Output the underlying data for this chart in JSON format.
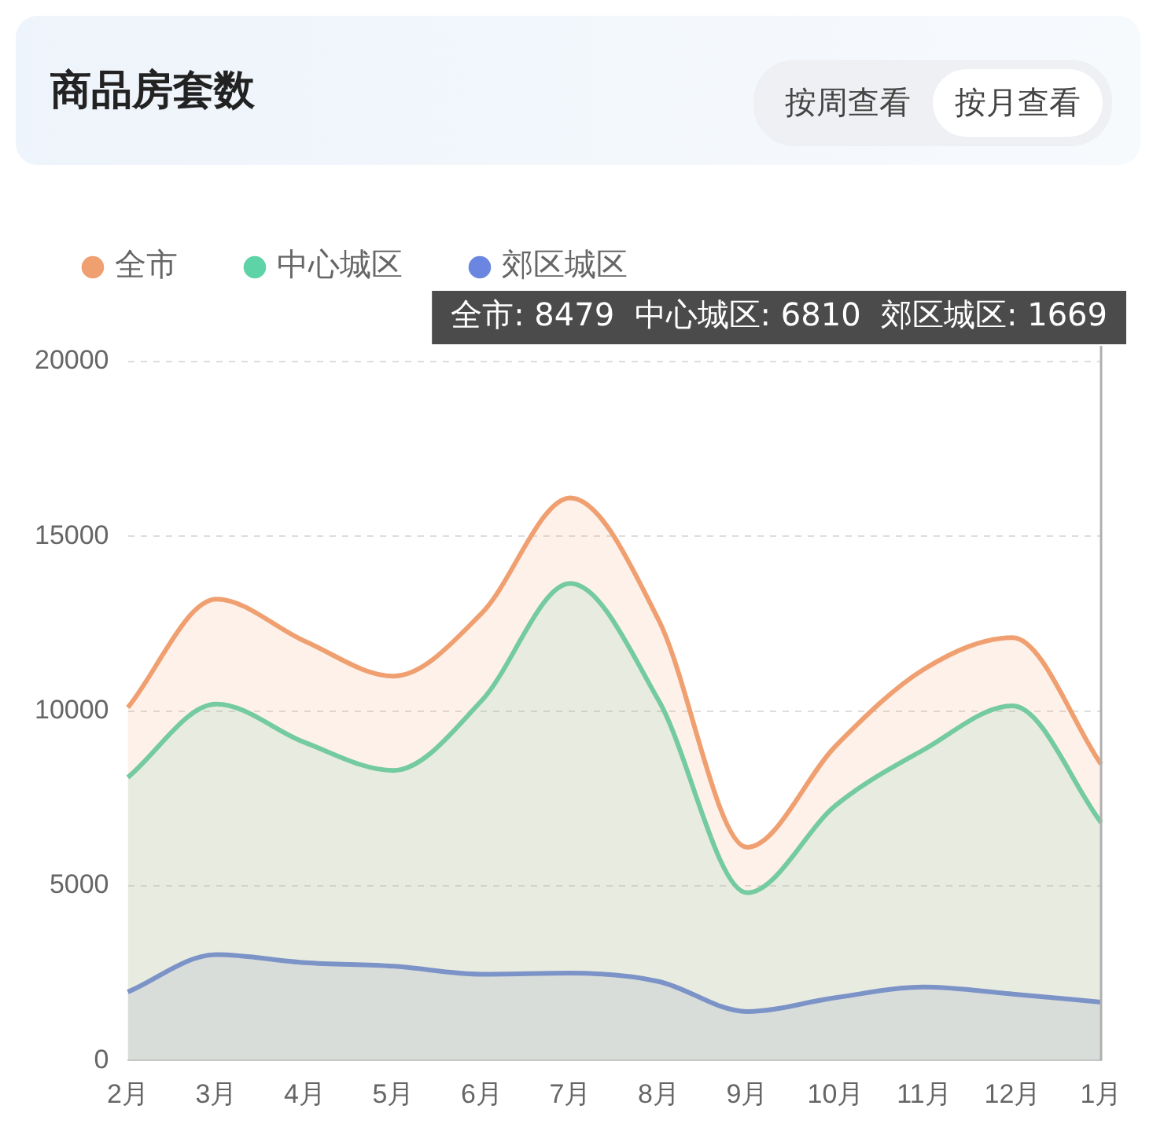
{
  "chart_data": {
    "type": "area",
    "title": "商品房套数",
    "categories": [
      "2月",
      "3月",
      "4月",
      "5月",
      "6月",
      "7月",
      "8月",
      "9月",
      "10月",
      "11月",
      "12月",
      "1月"
    ],
    "series": [
      {
        "name": "全市",
        "color": "#f0a070",
        "values": [
          10100,
          13200,
          12000,
          11000,
          12800,
          16100,
          12600,
          6100,
          9000,
          11200,
          12100,
          8479
        ]
      },
      {
        "name": "中心城区",
        "color": "#5fd3a8",
        "values": [
          8100,
          10200,
          9100,
          8300,
          10300,
          13650,
          10300,
          4800,
          7300,
          8900,
          10150,
          6810
        ]
      },
      {
        "name": "郊区城区",
        "color": "#6a86e0",
        "values": [
          1960,
          3030,
          2800,
          2700,
          2470,
          2500,
          2260,
          1400,
          1800,
          2100,
          1900,
          1669
        ]
      }
    ],
    "ylim": [
      0,
      20000
    ],
    "yticks": [
      0,
      5000,
      10000,
      15000,
      20000
    ],
    "grid": "y",
    "legend": "top left",
    "marker": "none",
    "ref_lines": [
      {
        "axis": "x",
        "value": "1月",
        "color": "#b0b0b0"
      }
    ],
    "annotations": [
      "按周查看",
      "按月查看",
      "全市: 8479  中心城区: 6810  郊区城区: 1669"
    ]
  }
}
